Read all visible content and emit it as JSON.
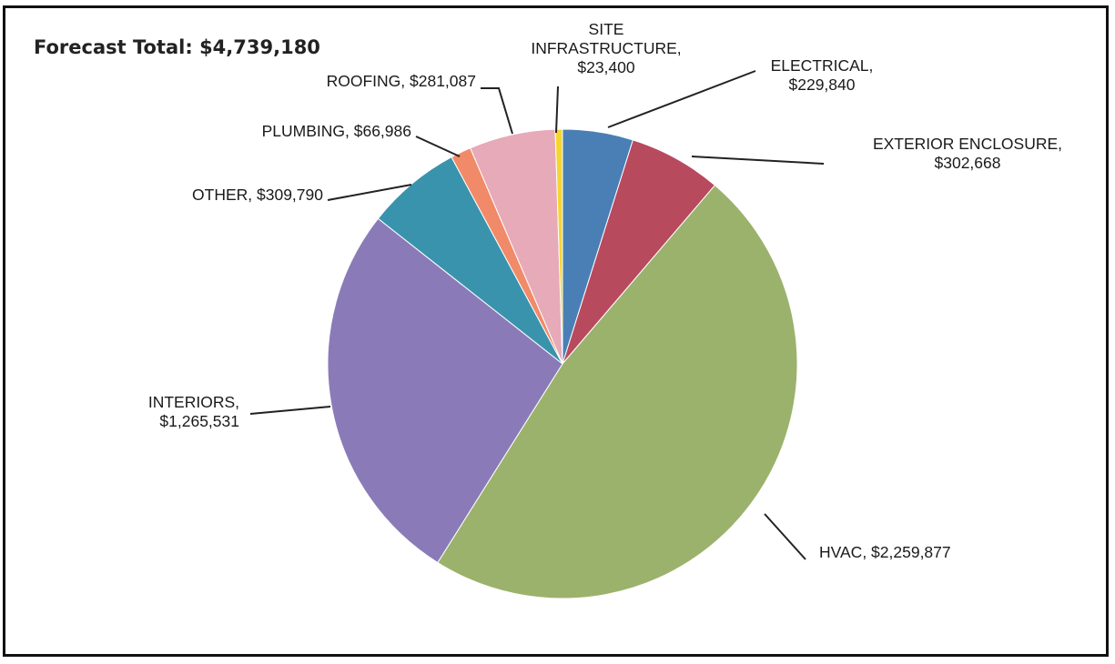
{
  "chart_data": {
    "type": "pie",
    "title": "Forecast Total: $4,739,180",
    "slices": [
      {
        "label": "ELECTRICAL",
        "label_lines": [
          "ELECTRICAL,",
          "$229,840"
        ],
        "value": 229840,
        "color": "#4a7fb5"
      },
      {
        "label": "EXTERIOR ENCLOSURE",
        "label_lines": [
          "EXTERIOR ENCLOSURE,",
          "$302,668"
        ],
        "value": 302668,
        "color": "#b84a5e"
      },
      {
        "label": "HVAC",
        "label_lines": [
          "HVAC, $2,259,877"
        ],
        "value": 2259877,
        "color": "#9bb26c"
      },
      {
        "label": "INTERIORS",
        "label_lines": [
          "INTERIORS,",
          "$1,265,531"
        ],
        "value": 1265531,
        "color": "#8a7bb8"
      },
      {
        "label": "OTHER",
        "label_lines": [
          "OTHER, $309,790"
        ],
        "value": 309790,
        "color": "#3a93ad"
      },
      {
        "label": "PLUMBING",
        "label_lines": [
          "PLUMBING, $66,986"
        ],
        "value": 66986,
        "color": "#f08a68"
      },
      {
        "label": "ROOFING",
        "label_lines": [
          "ROOFING, $281,087"
        ],
        "value": 281087,
        "color": "#e6aab8"
      },
      {
        "label": "SITE INFRASTRUCTURE",
        "label_lines": [
          "SITE",
          "INFRASTRUCTURE,",
          "$23,400"
        ],
        "value": 23400,
        "color": "#f3d630"
      }
    ],
    "start_angle": "12 o'clock",
    "direction": "clockwise",
    "legend": "none"
  }
}
